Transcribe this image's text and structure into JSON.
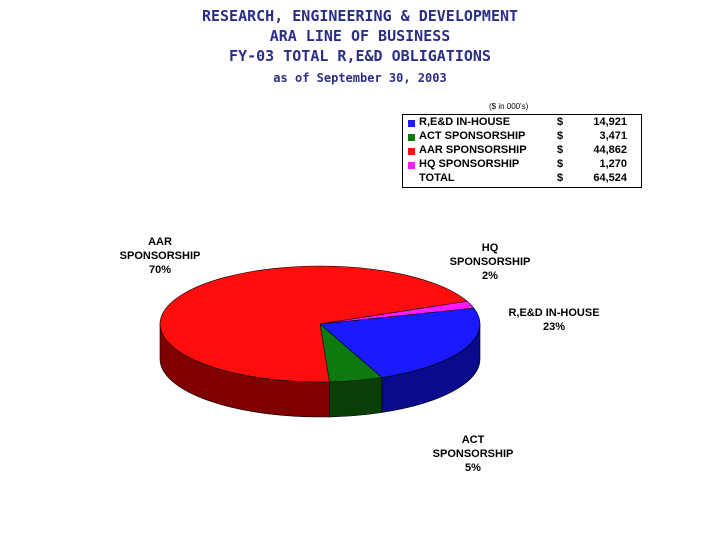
{
  "header": {
    "line1": "RESEARCH, ENGINEERING & DEVELOPMENT",
    "line2": "ARA LINE OF BUSINESS",
    "line3": "FY-03 TOTAL R,E&D OBLIGATIONS",
    "asof": "as of September 30, 2003"
  },
  "units": "($ in 000's)",
  "chart_data": {
    "type": "pie",
    "title": "FY-03 TOTAL R,E&D OBLIGATIONS",
    "slices": [
      {
        "name": "R,E&D IN-HOUSE",
        "value": 14921,
        "percent": "23%",
        "color": "#1a1aff",
        "dark": "#0a0a8c",
        "dollar": "$",
        "display": "14,921"
      },
      {
        "name": "ACT SPONSORSHIP",
        "value": 3471,
        "percent": "5%",
        "color": "#0c7a0c",
        "dark": "#073f07",
        "dollar": "$",
        "display": "3,471"
      },
      {
        "name": "AAR SPONSORSHIP",
        "value": 44862,
        "percent": "70%",
        "color": "#ff0d0d",
        "dark": "#800000",
        "dollar": "$",
        "display": "44,862"
      },
      {
        "name": "HQ SPONSORSHIP",
        "value": 1270,
        "percent": "2%",
        "color": "#ff1aff",
        "dark": "#8c008c",
        "dollar": "$",
        "display": "1,270"
      }
    ],
    "total": {
      "label": "TOTAL",
      "dollar": "$",
      "display": "64,524",
      "value": 64524
    },
    "slice_labels": [
      {
        "text": "AAR\nSPONSORSHIP\n70%"
      },
      {
        "text": "HQ\nSPONSORSHIP\n2%"
      },
      {
        "text": "R,E&D IN-HOUSE\n23%"
      },
      {
        "text": "ACT\nSPONSORSHIP\n5%"
      }
    ],
    "legend_position": "top-right"
  }
}
